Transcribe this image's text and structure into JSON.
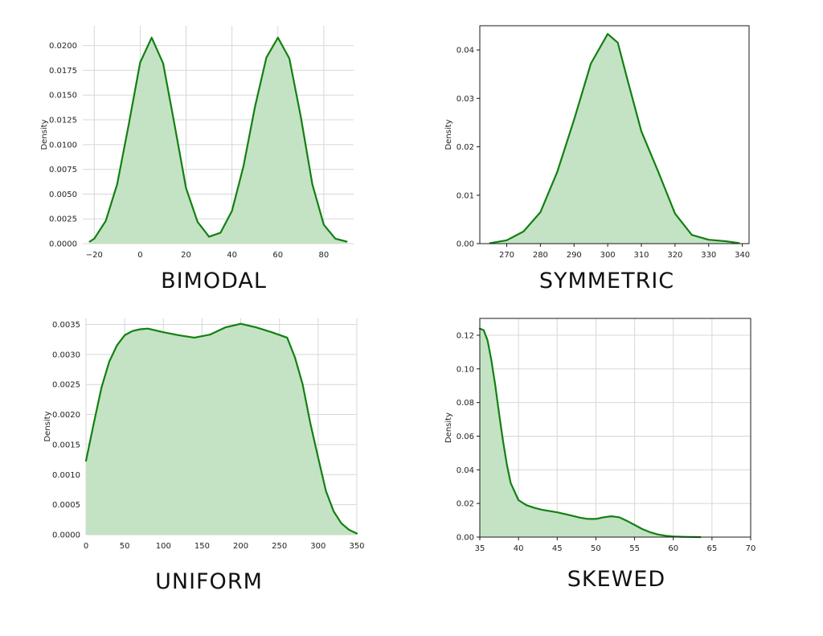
{
  "chart_data": [
    {
      "type": "area",
      "title": "BIMODAL",
      "xlabel": "",
      "ylabel": "Density",
      "xlim": [
        -25,
        93
      ],
      "ylim": [
        0,
        0.022
      ],
      "grid": true,
      "frame": "none",
      "x_ticks": [
        -20,
        0,
        20,
        40,
        60,
        80
      ],
      "x_tick_labels": [
        "−20",
        "0",
        "20",
        "40",
        "60",
        "80"
      ],
      "y_ticks": [
        0,
        0.0025,
        0.005,
        0.0075,
        0.01,
        0.0125,
        0.015,
        0.0175,
        0.02
      ],
      "y_tick_labels": [
        "0.0000",
        "0.0025",
        "0.0050",
        "0.0075",
        "0.0100",
        "0.0125",
        "0.0150",
        "0.0175",
        "0.0200"
      ],
      "x": [
        -22,
        -20,
        -15,
        -10,
        -5,
        0,
        5,
        10,
        15,
        20,
        25,
        30,
        35,
        40,
        45,
        50,
        55,
        60,
        65,
        70,
        75,
        80,
        85,
        90
      ],
      "y": [
        0.0002,
        0.0005,
        0.0023,
        0.006,
        0.012,
        0.0183,
        0.0208,
        0.0182,
        0.012,
        0.0056,
        0.0022,
        0.0007,
        0.0011,
        0.0033,
        0.0078,
        0.0138,
        0.0188,
        0.0208,
        0.0187,
        0.0128,
        0.006,
        0.0019,
        0.0005,
        0.0002
      ]
    },
    {
      "type": "area",
      "title": "SYMMETRIC",
      "xlabel": "",
      "ylabel": "Density",
      "xlim": [
        262,
        342
      ],
      "ylim": [
        0,
        0.045
      ],
      "grid": false,
      "frame": "box",
      "x_ticks": [
        270,
        280,
        290,
        300,
        310,
        320,
        330,
        340
      ],
      "x_tick_labels": [
        "270",
        "280",
        "290",
        "300",
        "310",
        "320",
        "330",
        "340"
      ],
      "y_ticks": [
        0,
        0.01,
        0.02,
        0.03,
        0.04
      ],
      "y_tick_labels": [
        "0.00",
        "0.01",
        "0.02",
        "0.03",
        "0.04"
      ],
      "x": [
        265,
        270,
        275,
        280,
        285,
        290,
        295,
        300,
        303,
        306,
        310,
        315,
        320,
        325,
        330,
        335,
        339
      ],
      "y": [
        0.0001,
        0.0007,
        0.0025,
        0.0065,
        0.0148,
        0.0256,
        0.0372,
        0.0433,
        0.0415,
        0.0335,
        0.0232,
        0.0149,
        0.0062,
        0.0018,
        0.0008,
        0.0005,
        0.0001
      ]
    },
    {
      "type": "area",
      "title": "UNIFORM",
      "xlabel": "",
      "ylabel": "Density",
      "xlim": [
        0,
        350
      ],
      "ylim": [
        0,
        0.0036
      ],
      "grid": true,
      "frame": "none",
      "x_ticks": [
        0,
        50,
        100,
        150,
        200,
        250,
        300,
        350
      ],
      "x_tick_labels": [
        "0",
        "50",
        "100",
        "150",
        "200",
        "250",
        "300",
        "350"
      ],
      "y_ticks": [
        0,
        0.0005,
        0.001,
        0.0015,
        0.002,
        0.0025,
        0.003,
        0.0035
      ],
      "y_tick_labels": [
        "0.0000",
        "0.0005",
        "0.0010",
        "0.0015",
        "0.0020",
        "0.0025",
        "0.0030",
        "0.0035"
      ],
      "x": [
        0,
        10,
        20,
        30,
        40,
        50,
        60,
        70,
        80,
        100,
        120,
        140,
        160,
        180,
        200,
        220,
        240,
        260,
        270,
        280,
        290,
        300,
        310,
        320,
        330,
        340,
        350
      ],
      "y": [
        0.00123,
        0.00185,
        0.00245,
        0.00288,
        0.00315,
        0.00332,
        0.00339,
        0.00342,
        0.00343,
        0.00337,
        0.00332,
        0.00328,
        0.00333,
        0.00345,
        0.00351,
        0.00345,
        0.00337,
        0.00328,
        0.00295,
        0.0025,
        0.00185,
        0.00128,
        0.00073,
        0.00039,
        0.00019,
        8e-05,
        2e-05
      ]
    },
    {
      "type": "area",
      "title": "SKEWED",
      "xlabel": "",
      "ylabel": "Density",
      "xlim": [
        35,
        70
      ],
      "ylim": [
        0,
        0.13
      ],
      "grid": true,
      "frame": "box",
      "x_ticks": [
        35,
        40,
        45,
        50,
        55,
        60,
        65,
        70
      ],
      "x_tick_labels": [
        "35",
        "40",
        "45",
        "50",
        "55",
        "60",
        "65",
        "70"
      ],
      "y_ticks": [
        0,
        0.02,
        0.04,
        0.06,
        0.08,
        0.1,
        0.12
      ],
      "y_tick_labels": [
        "0.00",
        "0.02",
        "0.04",
        "0.06",
        "0.08",
        "0.10",
        "0.12"
      ],
      "x": [
        35,
        35.5,
        36,
        36.5,
        37,
        37.5,
        38,
        38.5,
        39,
        40,
        41,
        42,
        43,
        44,
        45,
        46,
        47,
        48,
        49,
        50,
        51,
        52,
        53,
        54,
        55,
        56,
        57,
        58,
        59,
        60,
        61,
        62,
        63.5
      ],
      "y": [
        0.124,
        0.123,
        0.117,
        0.105,
        0.09,
        0.073,
        0.057,
        0.043,
        0.032,
        0.022,
        0.019,
        0.0175,
        0.0163,
        0.0155,
        0.0147,
        0.0137,
        0.0126,
        0.0115,
        0.0108,
        0.0108,
        0.0118,
        0.0124,
        0.0118,
        0.0097,
        0.0072,
        0.0048,
        0.0029,
        0.0016,
        0.0008,
        0.0004,
        0.0002,
        0.0001,
        0
      ]
    }
  ],
  "colors": {
    "line": "#128012",
    "fill": "#c1e2c1",
    "grid": "#d7d7d7",
    "axis": "#1a1a1a"
  }
}
